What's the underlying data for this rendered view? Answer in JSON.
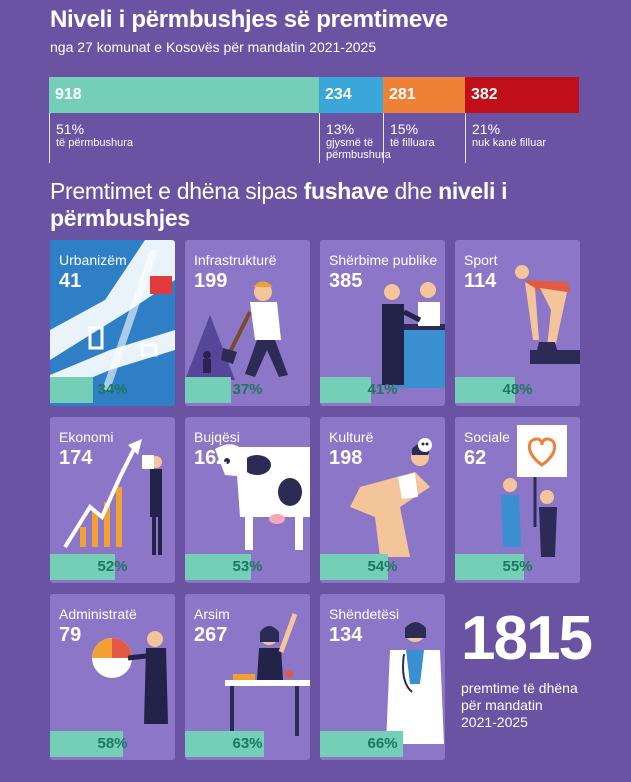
{
  "header": {
    "title": "Niveli i përmbushjes së premtimeve",
    "subtitle": "nga 27 komunat e Kosovës për mandatin 2021-2025"
  },
  "summary": [
    {
      "count": "918",
      "percent": "51%",
      "label": "të përmbushura",
      "color": "#74cfb6"
    },
    {
      "count": "234",
      "percent": "13%",
      "label": "gjysmë të përmbushura",
      "color": "#3ba6d8"
    },
    {
      "count": "281",
      "percent": "15%",
      "label": "të filluara",
      "color": "#ee8136"
    },
    {
      "count": "382",
      "percent": "21%",
      "label": "nuk kanë filluar",
      "color": "#c10f1a"
    }
  ],
  "section": {
    "part1": "Premtimet e dhëna sipas ",
    "part2": "fushave",
    "part3": " dhe ",
    "part4": "niveli i përmbushjes"
  },
  "cards": [
    {
      "name": "Urbanizëm",
      "count": "41",
      "percent_label": "34%",
      "fulfilled": 0.34,
      "icon": "city-map-icon"
    },
    {
      "name": "Infrastrukturë",
      "count": "199",
      "percent_label": "37%",
      "fulfilled": 0.37,
      "icon": "construction-worker-icon"
    },
    {
      "name": "Shërbime publike",
      "count": "385",
      "percent_label": "41%",
      "fulfilled": 0.41,
      "icon": "service-desk-icon"
    },
    {
      "name": "Sport",
      "count": "114",
      "percent_label": "48%",
      "fulfilled": 0.48,
      "icon": "swimmer-icon"
    },
    {
      "name": "Ekonomi",
      "count": "174",
      "percent_label": "52%",
      "fulfilled": 0.52,
      "icon": "growth-chart-icon"
    },
    {
      "name": "Bujqësi",
      "count": "162",
      "percent_label": "53%",
      "fulfilled": 0.53,
      "icon": "cow-icon"
    },
    {
      "name": "Kulturë",
      "count": "198",
      "percent_label": "54%",
      "fulfilled": 0.54,
      "icon": "theater-actor-icon"
    },
    {
      "name": "Sociale",
      "count": "62",
      "percent_label": "55%",
      "fulfilled": 0.55,
      "icon": "heart-sign-icon"
    },
    {
      "name": "Administratë",
      "count": "79",
      "percent_label": "58%",
      "fulfilled": 0.58,
      "icon": "pie-chart-person-icon"
    },
    {
      "name": "Arsim",
      "count": "267",
      "percent_label": "63%",
      "fulfilled": 0.63,
      "icon": "student-icon"
    },
    {
      "name": "Shëndetësi",
      "count": "134",
      "percent_label": "66%",
      "fulfilled": 0.66,
      "icon": "doctor-icon"
    }
  ],
  "total": {
    "number": "1815",
    "line1": "premtime të dhëna",
    "line2": "për mandatin",
    "line3": "2021-2025"
  }
}
